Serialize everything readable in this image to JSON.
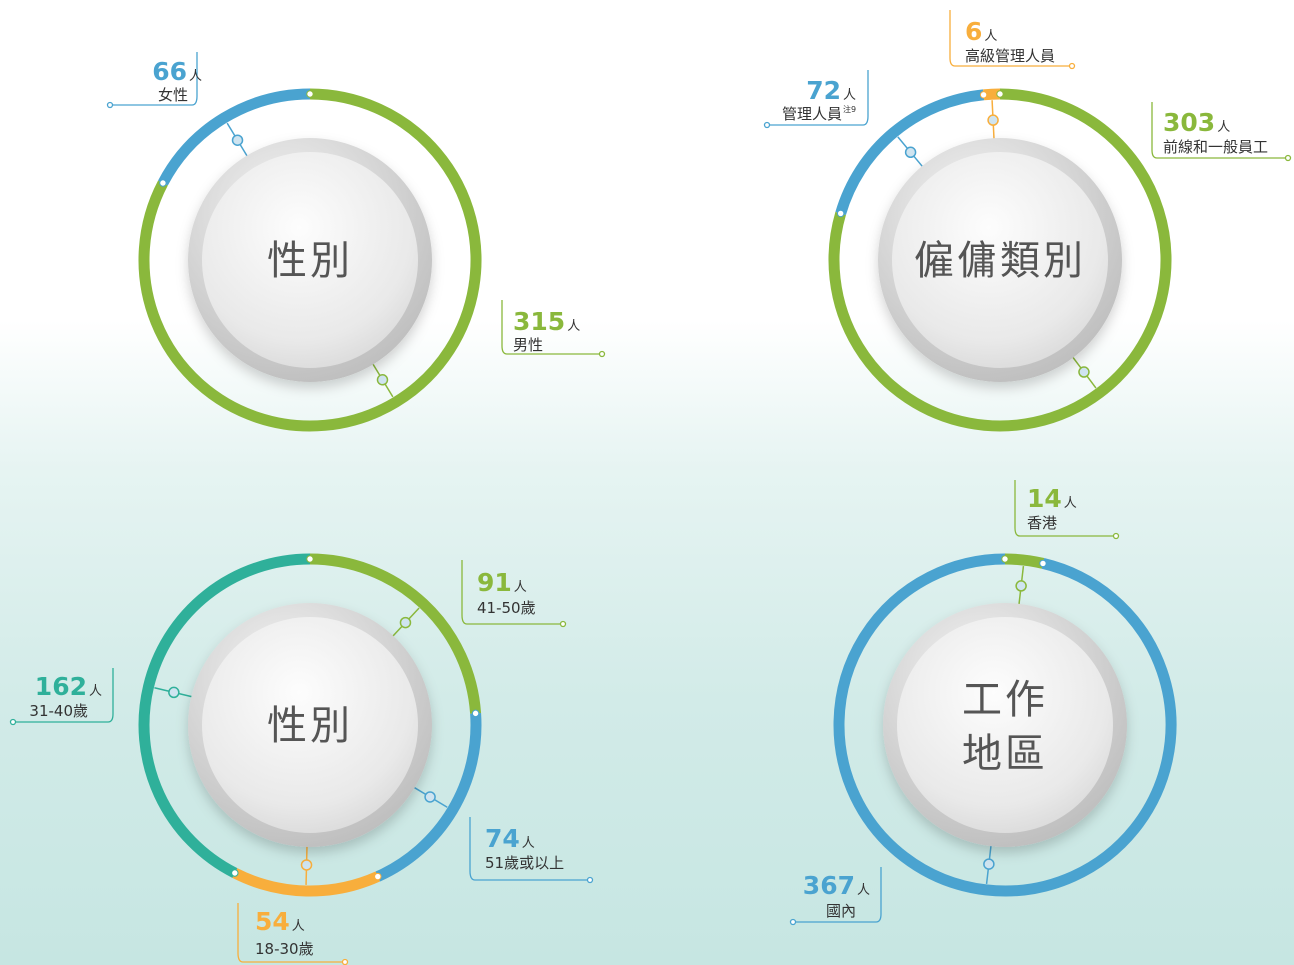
{
  "chart_data": [
    {
      "type": "donut",
      "title": "性別",
      "unit": "人",
      "series": [
        {
          "name": "男性",
          "color": "#8ab83c",
          "values": [
            315
          ]
        },
        {
          "name": "女性",
          "color": "#4aa3d0",
          "values": [
            66
          ]
        }
      ]
    },
    {
      "type": "donut",
      "title": "僱傭類別",
      "unit": "人",
      "series": [
        {
          "name": "前線和一般員工",
          "color": "#8ab83c",
          "values": [
            303
          ]
        },
        {
          "name": "管理人員",
          "note": "注9",
          "color": "#4aa3d0",
          "values": [
            72
          ]
        },
        {
          "name": "高級管理人員",
          "color": "#f8ae3c",
          "values": [
            6
          ]
        }
      ]
    },
    {
      "type": "donut",
      "title": "性別",
      "unit": "人",
      "series": [
        {
          "name": "41-50歲",
          "color": "#8ab83c",
          "values": [
            91
          ]
        },
        {
          "name": "51歲或以上",
          "color": "#4aa3d0",
          "values": [
            74
          ]
        },
        {
          "name": "18-30歲",
          "color": "#f8ae3c",
          "values": [
            54
          ]
        },
        {
          "name": "31-40歲",
          "color": "#2fb09a",
          "values": [
            162
          ]
        }
      ]
    },
    {
      "type": "donut",
      "title_lines": [
        "工作",
        "地區"
      ],
      "unit": "人",
      "series": [
        {
          "name": "香港",
          "color": "#8ab83c",
          "values": [
            14
          ]
        },
        {
          "name": "國內",
          "color": "#4aa3d0",
          "values": [
            367
          ]
        }
      ]
    }
  ]
}
